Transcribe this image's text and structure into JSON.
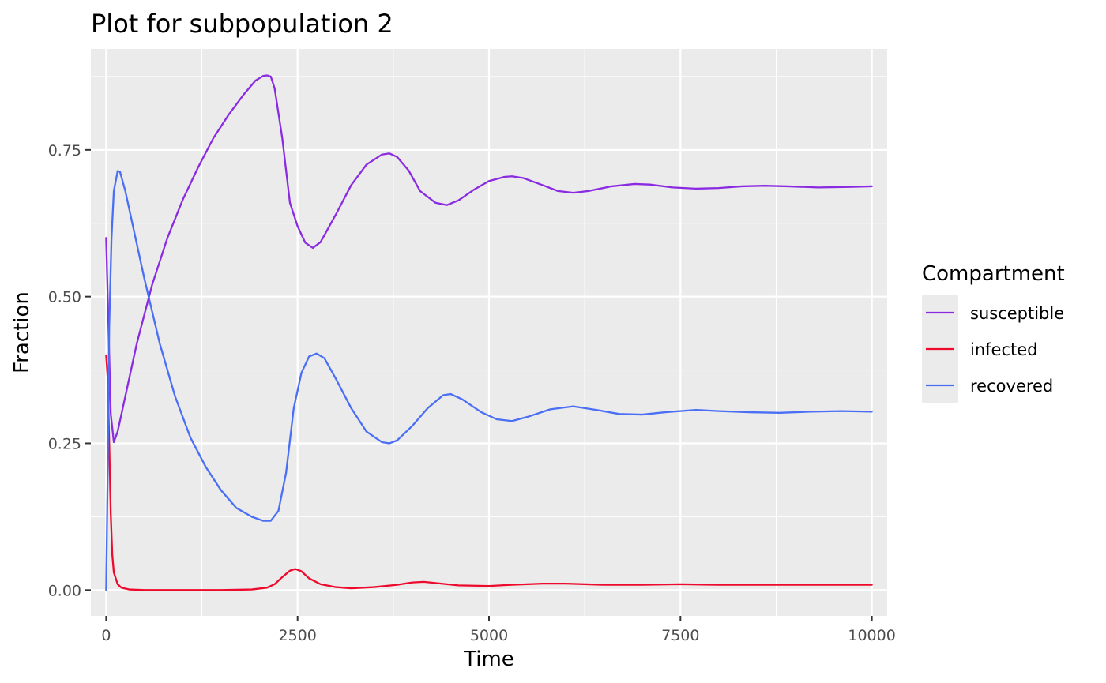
{
  "chart_data": {
    "type": "line",
    "title": "Plot for subpopulation 2",
    "xlabel": "Time",
    "ylabel": "Fraction",
    "xlim": [
      -200,
      10200
    ],
    "ylim": [
      -0.044,
      0.922
    ],
    "x_ticks": [
      0,
      2500,
      5000,
      7500,
      10000
    ],
    "x_tick_labels": [
      "0",
      "2500",
      "5000",
      "7500",
      "10000"
    ],
    "y_ticks": [
      0,
      0.25,
      0.5,
      0.75
    ],
    "y_tick_labels": [
      "0.00",
      "0.25",
      "0.50",
      "0.75"
    ],
    "grid": true,
    "legend": {
      "title": "Compartment",
      "position": "right"
    },
    "series": [
      {
        "name": "susceptible",
        "color": "#8a2be2",
        "points": [
          [
            0,
            0.6
          ],
          [
            30,
            0.45
          ],
          [
            60,
            0.3
          ],
          [
            100,
            0.252
          ],
          [
            150,
            0.27
          ],
          [
            250,
            0.33
          ],
          [
            400,
            0.42
          ],
          [
            600,
            0.52
          ],
          [
            800,
            0.6
          ],
          [
            1000,
            0.665
          ],
          [
            1200,
            0.72
          ],
          [
            1400,
            0.77
          ],
          [
            1600,
            0.81
          ],
          [
            1800,
            0.845
          ],
          [
            1950,
            0.868
          ],
          [
            2050,
            0.876
          ],
          [
            2100,
            0.877
          ],
          [
            2150,
            0.875
          ],
          [
            2200,
            0.855
          ],
          [
            2300,
            0.77
          ],
          [
            2400,
            0.66
          ],
          [
            2500,
            0.62
          ],
          [
            2600,
            0.592
          ],
          [
            2700,
            0.583
          ],
          [
            2800,
            0.593
          ],
          [
            3000,
            0.64
          ],
          [
            3200,
            0.69
          ],
          [
            3400,
            0.725
          ],
          [
            3600,
            0.742
          ],
          [
            3700,
            0.744
          ],
          [
            3800,
            0.738
          ],
          [
            3950,
            0.715
          ],
          [
            4100,
            0.68
          ],
          [
            4300,
            0.66
          ],
          [
            4450,
            0.656
          ],
          [
            4600,
            0.664
          ],
          [
            4800,
            0.682
          ],
          [
            5000,
            0.697
          ],
          [
            5200,
            0.704
          ],
          [
            5300,
            0.705
          ],
          [
            5450,
            0.702
          ],
          [
            5700,
            0.69
          ],
          [
            5900,
            0.68
          ],
          [
            6100,
            0.677
          ],
          [
            6300,
            0.68
          ],
          [
            6600,
            0.688
          ],
          [
            6900,
            0.692
          ],
          [
            7100,
            0.691
          ],
          [
            7400,
            0.686
          ],
          [
            7700,
            0.684
          ],
          [
            8000,
            0.685
          ],
          [
            8300,
            0.688
          ],
          [
            8600,
            0.689
          ],
          [
            8900,
            0.688
          ],
          [
            9300,
            0.686
          ],
          [
            9700,
            0.687
          ],
          [
            10000,
            0.688
          ]
        ]
      },
      {
        "name": "infected",
        "color": "#ee0a2c",
        "points": [
          [
            0,
            0.4
          ],
          [
            20,
            0.36
          ],
          [
            40,
            0.25
          ],
          [
            60,
            0.13
          ],
          [
            80,
            0.06
          ],
          [
            100,
            0.03
          ],
          [
            150,
            0.01
          ],
          [
            200,
            0.004
          ],
          [
            300,
            0.001
          ],
          [
            500,
            0.0
          ],
          [
            1000,
            0.0
          ],
          [
            1500,
            0.0
          ],
          [
            1900,
            0.001
          ],
          [
            2100,
            0.004
          ],
          [
            2200,
            0.01
          ],
          [
            2300,
            0.022
          ],
          [
            2400,
            0.033
          ],
          [
            2470,
            0.036
          ],
          [
            2550,
            0.032
          ],
          [
            2650,
            0.02
          ],
          [
            2800,
            0.01
          ],
          [
            3000,
            0.005
          ],
          [
            3200,
            0.003
          ],
          [
            3500,
            0.005
          ],
          [
            3800,
            0.009
          ],
          [
            4000,
            0.013
          ],
          [
            4150,
            0.014
          ],
          [
            4300,
            0.012
          ],
          [
            4600,
            0.008
          ],
          [
            5000,
            0.007
          ],
          [
            5300,
            0.009
          ],
          [
            5700,
            0.011
          ],
          [
            6000,
            0.011
          ],
          [
            6500,
            0.009
          ],
          [
            7000,
            0.009
          ],
          [
            7500,
            0.01
          ],
          [
            8000,
            0.009
          ],
          [
            8500,
            0.009
          ],
          [
            9000,
            0.009
          ],
          [
            9500,
            0.009
          ],
          [
            10000,
            0.009
          ]
        ]
      },
      {
        "name": "recovered",
        "color": "#4a6ff5",
        "points": [
          [
            0,
            0.0
          ],
          [
            20,
            0.2
          ],
          [
            40,
            0.45
          ],
          [
            70,
            0.6
          ],
          [
            100,
            0.68
          ],
          [
            150,
            0.714
          ],
          [
            180,
            0.713
          ],
          [
            250,
            0.68
          ],
          [
            350,
            0.62
          ],
          [
            500,
            0.53
          ],
          [
            700,
            0.42
          ],
          [
            900,
            0.33
          ],
          [
            1100,
            0.26
          ],
          [
            1300,
            0.21
          ],
          [
            1500,
            0.17
          ],
          [
            1700,
            0.14
          ],
          [
            1900,
            0.125
          ],
          [
            2050,
            0.118
          ],
          [
            2150,
            0.118
          ],
          [
            2250,
            0.135
          ],
          [
            2350,
            0.2
          ],
          [
            2450,
            0.31
          ],
          [
            2550,
            0.37
          ],
          [
            2650,
            0.398
          ],
          [
            2750,
            0.403
          ],
          [
            2850,
            0.395
          ],
          [
            3000,
            0.36
          ],
          [
            3200,
            0.31
          ],
          [
            3400,
            0.27
          ],
          [
            3600,
            0.252
          ],
          [
            3700,
            0.25
          ],
          [
            3800,
            0.255
          ],
          [
            4000,
            0.28
          ],
          [
            4200,
            0.31
          ],
          [
            4400,
            0.332
          ],
          [
            4500,
            0.334
          ],
          [
            4650,
            0.325
          ],
          [
            4900,
            0.303
          ],
          [
            5100,
            0.291
          ],
          [
            5300,
            0.288
          ],
          [
            5500,
            0.295
          ],
          [
            5800,
            0.308
          ],
          [
            6100,
            0.313
          ],
          [
            6400,
            0.307
          ],
          [
            6700,
            0.3
          ],
          [
            7000,
            0.299
          ],
          [
            7300,
            0.303
          ],
          [
            7700,
            0.307
          ],
          [
            8000,
            0.305
          ],
          [
            8400,
            0.303
          ],
          [
            8800,
            0.302
          ],
          [
            9200,
            0.304
          ],
          [
            9600,
            0.305
          ],
          [
            10000,
            0.304
          ]
        ]
      }
    ]
  }
}
